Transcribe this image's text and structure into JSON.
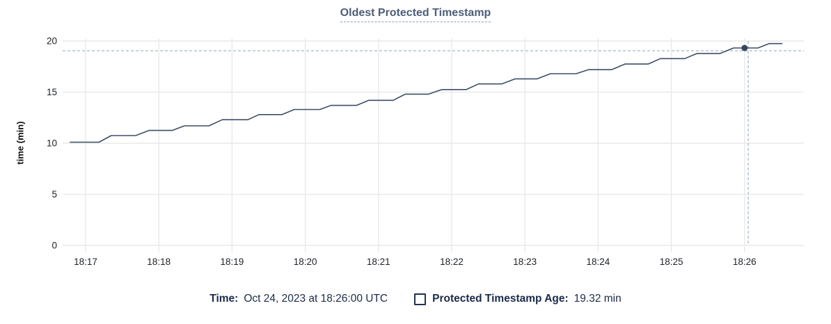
{
  "chart": {
    "title": "Oldest Protected Timestamp"
  },
  "legend": {
    "time_label": "Time:",
    "time_value": "Oct 24, 2023 at 18:26:00 UTC",
    "series_label": "Protected Timestamp Age:",
    "series_value": "19.32 min"
  },
  "colors": {
    "line": "#3e4d68",
    "dot": "#36455f",
    "grid": "#e9e9e9",
    "crosshair": "#a4b8c5",
    "tick_text": "#1d2126"
  },
  "chart_data": {
    "type": "line",
    "title": "Oldest Protected Timestamp",
    "xlabel": "",
    "ylabel": "time (min)",
    "ylim": [
      0,
      20
    ],
    "yticks": [
      0,
      5,
      10,
      15,
      20
    ],
    "xticks": [
      "18:17",
      "18:18",
      "18:19",
      "18:20",
      "18:21",
      "18:22",
      "18:23",
      "18:24",
      "18:25",
      "18:26"
    ],
    "grid": true,
    "legend_position": "bottom",
    "series": [
      {
        "name": "Protected Timestamp Age",
        "unit": "min",
        "points": [
          {
            "t": "18:16:47",
            "v": 10.1
          },
          {
            "t": "18:17:11",
            "v": 10.1
          },
          {
            "t": "18:17:21",
            "v": 10.75
          },
          {
            "t": "18:17:41",
            "v": 10.75
          },
          {
            "t": "18:17:52",
            "v": 11.25
          },
          {
            "t": "18:18:11",
            "v": 11.25
          },
          {
            "t": "18:18:21",
            "v": 11.7
          },
          {
            "t": "18:18:41",
            "v": 11.7
          },
          {
            "t": "18:18:52",
            "v": 12.3
          },
          {
            "t": "18:19:13",
            "v": 12.3
          },
          {
            "t": "18:19:22",
            "v": 12.8
          },
          {
            "t": "18:19:41",
            "v": 12.8
          },
          {
            "t": "18:19:51",
            "v": 13.3
          },
          {
            "t": "18:20:12",
            "v": 13.3
          },
          {
            "t": "18:20:21",
            "v": 13.7
          },
          {
            "t": "18:20:42",
            "v": 13.7
          },
          {
            "t": "18:20:52",
            "v": 14.2
          },
          {
            "t": "18:21:12",
            "v": 14.2
          },
          {
            "t": "18:21:22",
            "v": 14.8
          },
          {
            "t": "18:21:41",
            "v": 14.8
          },
          {
            "t": "18:21:52",
            "v": 15.25
          },
          {
            "t": "18:22:12",
            "v": 15.25
          },
          {
            "t": "18:22:22",
            "v": 15.8
          },
          {
            "t": "18:22:41",
            "v": 15.8
          },
          {
            "t": "18:22:52",
            "v": 16.3
          },
          {
            "t": "18:23:10",
            "v": 16.3
          },
          {
            "t": "18:23:21",
            "v": 16.8
          },
          {
            "t": "18:23:42",
            "v": 16.8
          },
          {
            "t": "18:23:52",
            "v": 17.2
          },
          {
            "t": "18:24:11",
            "v": 17.2
          },
          {
            "t": "18:24:22",
            "v": 17.75
          },
          {
            "t": "18:24:41",
            "v": 17.75
          },
          {
            "t": "18:24:51",
            "v": 18.28
          },
          {
            "t": "18:25:11",
            "v": 18.28
          },
          {
            "t": "18:25:21",
            "v": 18.78
          },
          {
            "t": "18:25:40",
            "v": 18.78
          },
          {
            "t": "18:25:51",
            "v": 19.32
          },
          {
            "t": "18:26:11",
            "v": 19.32
          },
          {
            "t": "18:26:20",
            "v": 19.75
          },
          {
            "t": "18:26:31",
            "v": 19.75
          }
        ]
      }
    ],
    "hover_point": {
      "t": "18:26:00",
      "v": 19.32
    },
    "crosshair": {
      "t": "18:26:03",
      "v": 19.05
    }
  }
}
